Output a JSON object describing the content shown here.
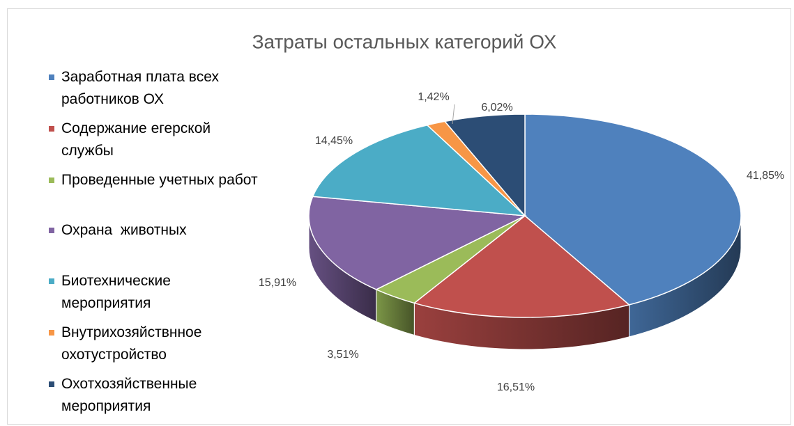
{
  "chart_data": {
    "type": "pie3d",
    "title": "Затраты остальных категорий ОХ",
    "categories": [
      "Заработная плата всех работников ОХ",
      "Содержание егерской службы",
      "Проведенные учетных работ",
      "Охрана  животных",
      "Биотехнические мероприятия",
      "Внутрихозяйствнное охотустройство",
      "Охотхозяйственные мероприятия"
    ],
    "values": [
      41.85,
      16.51,
      3.51,
      15.91,
      14.45,
      1.42,
      6.02
    ],
    "value_labels": [
      "41,85%",
      "16,51%",
      "3,51%",
      "15,91%",
      "14,45%",
      "1,42%",
      "6,02%"
    ],
    "colors": [
      "#4f81bd",
      "#c0504d",
      "#9bbb59",
      "#8064a2",
      "#4bacc6",
      "#f79646",
      "#2c4d75"
    ],
    "legend": "left"
  }
}
